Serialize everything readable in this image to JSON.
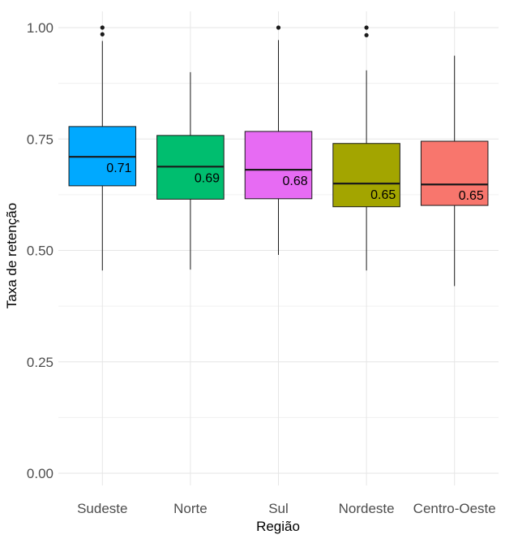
{
  "chart_data": {
    "type": "box",
    "xlabel": "Região",
    "ylabel": "Taxa de retenção",
    "ylim": [
      0,
      1.0
    ],
    "y_ticks": [
      0.0,
      0.25,
      0.5,
      0.75,
      1.0
    ],
    "y_tick_labels": [
      "0.00",
      "0.25",
      "0.50",
      "0.75",
      "1.00"
    ],
    "grid": true,
    "categories": [
      "Sudeste",
      "Norte",
      "Sul",
      "Nordeste",
      "Centro-Oeste"
    ],
    "boxes": [
      {
        "category": "Sudeste",
        "min": 0.455,
        "q1": 0.645,
        "median": 0.71,
        "q3": 0.778,
        "max": 0.97,
        "outliers": [
          1.0,
          0.985
        ],
        "median_label": "0.71",
        "color": "#00A9FF"
      },
      {
        "category": "Norte",
        "min": 0.457,
        "q1": 0.615,
        "median": 0.688,
        "q3": 0.758,
        "max": 0.9,
        "outliers": [],
        "median_label": "0.69",
        "color": "#00BE6F"
      },
      {
        "category": "Sul",
        "min": 0.49,
        "q1": 0.616,
        "median": 0.681,
        "q3": 0.767,
        "max": 0.972,
        "outliers": [
          1.0
        ],
        "median_label": "0.68",
        "color": "#E76BF3"
      },
      {
        "category": "Nordeste",
        "min": 0.455,
        "q1": 0.598,
        "median": 0.65,
        "q3": 0.74,
        "max": 0.904,
        "outliers": [
          1.0,
          0.983
        ],
        "median_label": "0.65",
        "color": "#A3A500"
      },
      {
        "category": "Centro-Oeste",
        "min": 0.42,
        "q1": 0.601,
        "median": 0.648,
        "q3": 0.745,
        "max": 0.937,
        "outliers": [],
        "median_label": "0.65",
        "color": "#F8766D"
      }
    ]
  }
}
